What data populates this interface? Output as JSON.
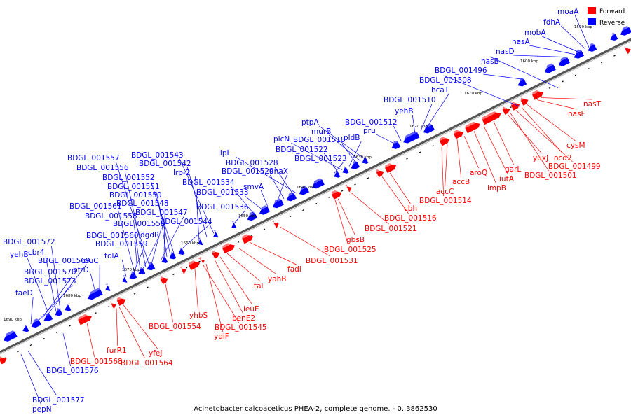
{
  "caption": "Acinetobacter calcoaceticus PHEA-2, complete genome. - 0..3862530",
  "legend": [
    {
      "label": "Forward",
      "color": "#ff0000"
    },
    {
      "label": "Reverse",
      "color": "#0000ff"
    }
  ],
  "colors": {
    "forward": "#ff0000",
    "reverse": "#0000ff",
    "backbone": "#777777"
  },
  "kbp_labels": [
    "1590 kbp",
    "1600 kbp",
    "1610 kbp",
    "1620 kbp",
    "1630 kbp",
    "1640 kbp",
    "1650 kbp",
    "1660 kbp",
    "1670 kbp",
    "1680 kbp",
    "1690 kbp"
  ],
  "genes_reverse": [
    "moaA",
    "fdhA",
    "mobA",
    "nasA",
    "nasD",
    "nasB",
    "BDGL_001496",
    "BDGL_001508",
    "hcaT",
    "BDGL_001510",
    "yehB",
    "BDGL_001512",
    "pru",
    "ptpA",
    "murB",
    "BDGL_001518",
    "pldB",
    "plcN",
    "BDGL_001522",
    "BDGL_001523",
    "lipL",
    "BDGL_001528",
    "BDGL_001529",
    "dnaX",
    "smvA",
    "BDGL_001533",
    "BDGL_001534",
    "BDGL_001536",
    "BDGL_001543",
    "BDGL_001542",
    "lrp-2",
    "BDGL_001557",
    "BDGL_001556",
    "BDGL_001552",
    "BDGL_001551",
    "BDGL_001550",
    "BDGL_001548",
    "BDGL_001547",
    "BDGL_001544",
    "BDGL_001561",
    "BDGL_001558",
    "BDGL_001555",
    "dgdR",
    "BDGL_001560",
    "BDGL_001559",
    "tolA",
    "BDGL_001572",
    "cbr4",
    "yehB",
    "BDGL_001569",
    "piuC",
    "BDGL_001570",
    "bfrD",
    "BDGL_001573",
    "faeD",
    "BDGL_001576",
    "BDGL_001577",
    "pepN"
  ],
  "genes_forward": [
    "nasT",
    "nasF",
    "cysM",
    "ocd2",
    "BDGL_001499",
    "yuxJ",
    "BDGL_001501",
    "garL",
    "iutA",
    "impB",
    "aroQ",
    "accB",
    "accC",
    "BDGL_001514",
    "cbh",
    "BDGL_001516",
    "BDGL_001521",
    "gbsB",
    "BDGL_001525",
    "BDGL_001531",
    "fadI",
    "yahB",
    "tal",
    "leuE",
    "benE2",
    "yhbS",
    "ydiF",
    "BDGL_001545",
    "BDGL_001554",
    "furR1",
    "yfeJ",
    "BDGL_001564",
    "BDGL_001568"
  ]
}
